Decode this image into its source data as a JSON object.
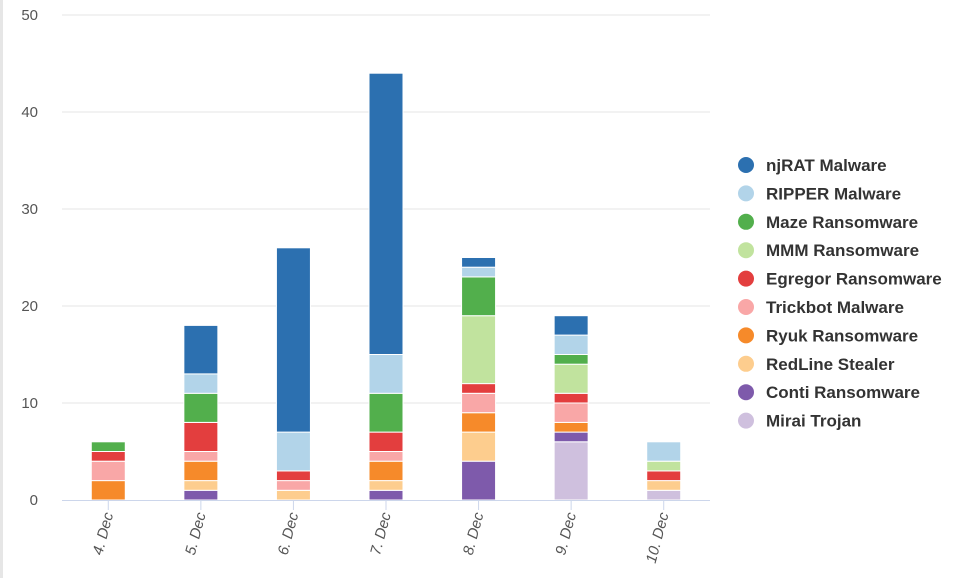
{
  "chart_data": {
    "type": "bar",
    "stacked": true,
    "categories": [
      "4. Dec",
      "5. Dec",
      "6. Dec",
      "7. Dec",
      "8. Dec",
      "9. Dec",
      "10. Dec"
    ],
    "ylim": [
      0,
      50
    ],
    "yticks": [
      "0",
      "10",
      "20",
      "30",
      "40",
      "50"
    ],
    "grid": true,
    "legend_position": "right",
    "series": [
      {
        "name": "Mirai Trojan",
        "color": "#cfc0de",
        "values": [
          0,
          0,
          0,
          0,
          0,
          6,
          1
        ]
      },
      {
        "name": "Conti Ransomware",
        "color": "#7e5aab",
        "values": [
          0,
          1,
          0,
          1,
          4,
          1,
          0
        ]
      },
      {
        "name": "RedLine Stealer",
        "color": "#fdcd8e",
        "values": [
          0,
          1,
          1,
          1,
          3,
          0,
          1
        ]
      },
      {
        "name": "Ryuk Ransomware",
        "color": "#f68a2a",
        "values": [
          2,
          2,
          0,
          2,
          2,
          1,
          0
        ]
      },
      {
        "name": "Trickbot Malware",
        "color": "#f9a7a7",
        "values": [
          2,
          1,
          1,
          1,
          2,
          2,
          0
        ]
      },
      {
        "name": "Egregor Ransomware",
        "color": "#e33e3e",
        "values": [
          1,
          3,
          1,
          2,
          1,
          1,
          1
        ]
      },
      {
        "name": "MMM Ransomware",
        "color": "#c1e39e",
        "values": [
          0,
          0,
          0,
          0,
          7,
          3,
          1
        ]
      },
      {
        "name": "Maze Ransomware",
        "color": "#52af4c",
        "values": [
          1,
          3,
          0,
          4,
          4,
          1,
          0
        ]
      },
      {
        "name": "RIPPER Malware",
        "color": "#b2d4e9",
        "values": [
          0,
          2,
          4,
          4,
          1,
          2,
          2
        ]
      },
      {
        "name": "njRAT Malware",
        "color": "#2c70b0",
        "values": [
          0,
          5,
          19,
          29,
          1,
          2,
          0
        ]
      }
    ],
    "legend_order": [
      "njRAT Malware",
      "RIPPER Malware",
      "Maze Ransomware",
      "MMM Ransomware",
      "Egregor Ransomware",
      "Trickbot Malware",
      "Ryuk Ransomware",
      "RedLine Stealer",
      "Conti Ransomware",
      "Mirai Trojan"
    ]
  }
}
